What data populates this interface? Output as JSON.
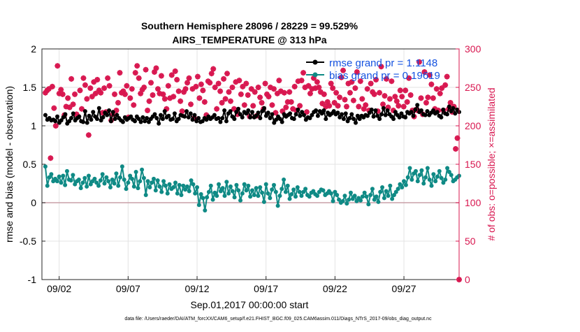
{
  "chart_data": {
    "type": "line",
    "title_line1": "Southern Hemisphere 28096 / 28229 = 99.529%",
    "title_line2": "AIRS_TEMPERATURE @ 313 hPa",
    "xlabel": "Sep.01,2017 00:00:00 start",
    "ylabel_left": "rmse and bias (model - observation)",
    "ylabel_right": "# of obs: o=possible; ×=assimilated",
    "footer": "data file: /Users/raeder/DAI/ATM_forcXX/CAM6_setup/f.e21.FHIST_BGC.f09_025.CAM6assim.011/Diags_NTrS_2017-09/obs_diag_output.nc",
    "x_ticks": [
      {
        "day": 2,
        "label": "09/02"
      },
      {
        "day": 7,
        "label": "09/07"
      },
      {
        "day": 12,
        "label": "09/12"
      },
      {
        "day": 17,
        "label": "09/17"
      },
      {
        "day": 22,
        "label": "09/22"
      },
      {
        "day": 27,
        "label": "09/27"
      }
    ],
    "xlim": [
      0.75,
      31.0
    ],
    "ylim_left": [
      -1,
      2
    ],
    "ylim_right": [
      0,
      300
    ],
    "y_ticks_left": [
      "-1",
      "-0.5",
      "0",
      "0.5",
      "1",
      "1.5",
      "2"
    ],
    "y_ticks_right": [
      "0",
      "50",
      "100",
      "150",
      "200",
      "250",
      "300"
    ],
    "grid": true,
    "legend_position": "top-right",
    "colors": {
      "rmse": "#000000",
      "bias": "#0f8a85",
      "obs": "#d8164f",
      "zero_line": "#c8a0a8",
      "right_axis": "#d8164f"
    },
    "series": [
      {
        "name": "rmse grand pr = 1.1148",
        "values": [
          1.14,
          1.08,
          1.1,
          1.07,
          1.08,
          1.06,
          1.12,
          1.04,
          1.07,
          1.11,
          1.15,
          1.03,
          1.06,
          1.1,
          1.16,
          1.07,
          1.1,
          1.12,
          1.06,
          1.05,
          1.19,
          1.04,
          1.13,
          1.08,
          1.18,
          1.12,
          1.09,
          1.23,
          1.07,
          1.11,
          1.17,
          1.14,
          1.2,
          1.06,
          1.18,
          1.09,
          1.14,
          1.1,
          1.07,
          1.05,
          1.11,
          1.08,
          1.1,
          1.12,
          1.08,
          1.06,
          1.12,
          1.09,
          1.05,
          1.11,
          1.06,
          1.1,
          1.05,
          1.09,
          1.12,
          1.15,
          1.1,
          1.03,
          1.14,
          1.09,
          1.19,
          1.11,
          1.13,
          1.08,
          1.09,
          1.16,
          1.06,
          1.09,
          1.14,
          1.13,
          1.12,
          1.19,
          1.11,
          1.16,
          1.08,
          1.14,
          1.06,
          1.1,
          1.05,
          1.06,
          1.1,
          1.08,
          1.12,
          1.09,
          1.11,
          1.14,
          1.09,
          1.1,
          1.05,
          1.1,
          1.2,
          1.06,
          1.16,
          1.19,
          1.12,
          1.09,
          1.18,
          1.22,
          1.15,
          1.11,
          1.18,
          1.16,
          1.2,
          1.11,
          1.18,
          1.11,
          1.13,
          1.17,
          1.1,
          1.19,
          1.23,
          1.13,
          1.17,
          1.1,
          1.15,
          1.04,
          1.08,
          1.12,
          1.09,
          1.05,
          1.15,
          1.12,
          1.14,
          1.16,
          1.1,
          1.09,
          1.15,
          1.21,
          1.13,
          1.18,
          1.14,
          1.08,
          1.11,
          1.1,
          1.14,
          1.18,
          1.2,
          1.13,
          1.19,
          1.16,
          1.2,
          1.09,
          1.17,
          1.14,
          1.16,
          1.19,
          1.15,
          1.17,
          1.11,
          1.15,
          1.09,
          1.16,
          1.06,
          1.1,
          1.15,
          1.09,
          1.04,
          1.13,
          1.09,
          1.13,
          1.11,
          1.14,
          1.13,
          1.17,
          1.21,
          1.12,
          1.2,
          1.13,
          1.09,
          1.15,
          1.23,
          1.14,
          1.2,
          1.15,
          1.12,
          1.09,
          1.18,
          1.14,
          1.11,
          1.16,
          1.12,
          1.11,
          1.18,
          1.16,
          1.18,
          1.13,
          1.21,
          1.27,
          1.18,
          1.2,
          1.15,
          1.14,
          1.19,
          1.14,
          1.17,
          1.2,
          1.16,
          1.18,
          1.13,
          1.11,
          1.21,
          1.16,
          1.15,
          1.25,
          1.19,
          1.23,
          1.16,
          1.21,
          1.18
        ]
      },
      {
        "name": "bias grand pr = 0.19619",
        "values": [
          0.47,
          0.22,
          0.33,
          0.37,
          0.28,
          0.31,
          0.28,
          0.34,
          0.26,
          0.35,
          0.23,
          0.41,
          0.3,
          0.29,
          0.36,
          0.24,
          0.28,
          0.3,
          0.19,
          0.26,
          0.32,
          0.21,
          0.35,
          0.24,
          0.28,
          0.31,
          0.26,
          0.22,
          0.29,
          0.37,
          0.25,
          0.33,
          0.28,
          0.2,
          0.3,
          0.25,
          0.38,
          0.22,
          0.33,
          0.47,
          0.3,
          0.18,
          0.26,
          0.35,
          0.31,
          0.21,
          0.4,
          0.19,
          0.28,
          0.43,
          0.32,
          0.1,
          0.28,
          0.2,
          0.26,
          0.31,
          0.16,
          0.29,
          0.21,
          0.14,
          0.28,
          0.22,
          0.12,
          0.24,
          0.18,
          0.2,
          0.26,
          0.12,
          0.23,
          0.1,
          0.22,
          0.17,
          0.21,
          0.15,
          0.29,
          0.24,
          0.12,
          0.2,
          -0.03,
          0.11,
          0.06,
          -0.1,
          0.07,
          0.14,
          0.22,
          0.04,
          0.13,
          0.09,
          0.24,
          0.15,
          0.19,
          0.09,
          0.27,
          0.12,
          0.21,
          0.15,
          0.07,
          0.23,
          0.16,
          0.03,
          0.12,
          0.24,
          0.16,
          0.22,
          0.08,
          0.16,
          0.1,
          0.19,
          0.09,
          0.2,
          0.13,
          0.01,
          0.24,
          0.12,
          0.06,
          0.17,
          0.23,
          0.14,
          -0.04,
          0.09,
          0.18,
          0.3,
          0.14,
          0.22,
          0.05,
          0.11,
          0.17,
          0.08,
          0.2,
          0.14,
          0.09,
          0.14,
          0.18,
          0.1,
          0.08,
          0.13,
          0.15,
          0.11,
          0.09,
          0.14,
          0.17,
          0.16,
          0.1,
          0.12,
          0.15,
          0.12,
          0.02,
          0.14,
          0.1,
          0.04,
          0.0,
          0.02,
          0.09,
          -0.01,
          0.04,
          0.13,
          0.05,
          0.09,
          0.02,
          0.06,
          0.03,
          0.08,
          0.13,
          0.08,
          -0.02,
          0.1,
          0.18,
          0.04,
          0.08,
          0.01,
          0.14,
          0.2,
          0.06,
          0.15,
          0.09,
          0.22,
          0.05,
          0.1,
          0.14,
          0.18,
          0.24,
          0.2,
          0.28,
          0.23,
          0.33,
          0.45,
          0.3,
          0.38,
          0.41,
          0.28,
          0.36,
          0.42,
          0.25,
          0.33,
          0.45,
          0.3,
          0.22,
          0.37,
          0.28,
          0.34,
          0.41,
          0.32,
          0.26,
          0.3,
          0.45,
          0.4,
          0.36,
          0.28,
          0.3,
          0.33,
          0.35
        ]
      }
    ],
    "obs_possible": [
      243,
      246,
      248,
      158,
      251,
      223,
      200,
      278,
      242,
      247,
      241,
      214,
      225,
      236,
      224,
      261,
      228,
      241,
      215,
      212,
      246,
      222,
      262,
      253,
      235,
      188,
      249,
      238,
      257,
      242,
      260,
      246,
      243,
      217,
      249,
      218,
      262,
      252,
      207,
      215,
      241,
      220,
      230,
      269,
      243,
      245,
      241,
      252,
      211,
      236,
      248,
      227,
      269,
      278,
      262,
      242,
      247,
      250,
      273,
      220,
      232,
      256,
      240,
      270,
      275,
      248,
      242,
      265,
      241,
      235,
      222,
      252,
      236,
      266,
      238,
      271,
      260,
      245,
      232,
      219,
      244,
      248,
      256,
      262,
      228,
      248,
      210,
      251,
      264,
      236,
      254,
      246,
      231,
      214,
      258,
      256,
      268,
      274,
      250,
      222,
      255,
      245,
      230,
      261,
      235,
      268,
      244,
      232,
      250,
      222,
      257,
      215,
      259,
      241,
      251,
      227,
      255,
      240,
      212,
      248,
      226,
      244,
      213,
      250,
      237,
      230,
      222,
      255,
      241,
      238,
      250,
      227,
      248,
      217,
      242,
      259,
      245,
      219,
      243,
      224,
      231,
      244,
      231,
      222,
      251,
      220,
      258,
      226,
      259,
      269,
      250,
      218,
      252,
      242,
      248,
      262,
      249,
      257,
      250,
      244,
      229,
      241,
      225,
      231,
      226,
      255,
      249,
      230,
      243,
      226,
      237,
      263,
      272,
      234,
      225,
      255,
      243,
      257,
      233,
      249,
      270,
      225,
      258,
      235,
      222,
      227,
      248,
      220,
      255,
      244,
      241,
      260,
      219,
      243,
      277,
      228,
      239,
      261,
      224,
      235,
      258,
      220,
      238,
      232,
      226,
      246,
      238,
      225,
      246,
      231,
      262,
      240,
      220,
      212,
      221,
      220,
      283,
      236,
      215,
      270,
      230,
      237,
      266,
      254,
      236,
      222,
      248,
      220,
      242,
      249,
      220,
      253,
      264,
      222,
      230,
      218,
      225,
      170,
      184,
      0
    ],
    "obs_possible_x_end": 31.0
  }
}
